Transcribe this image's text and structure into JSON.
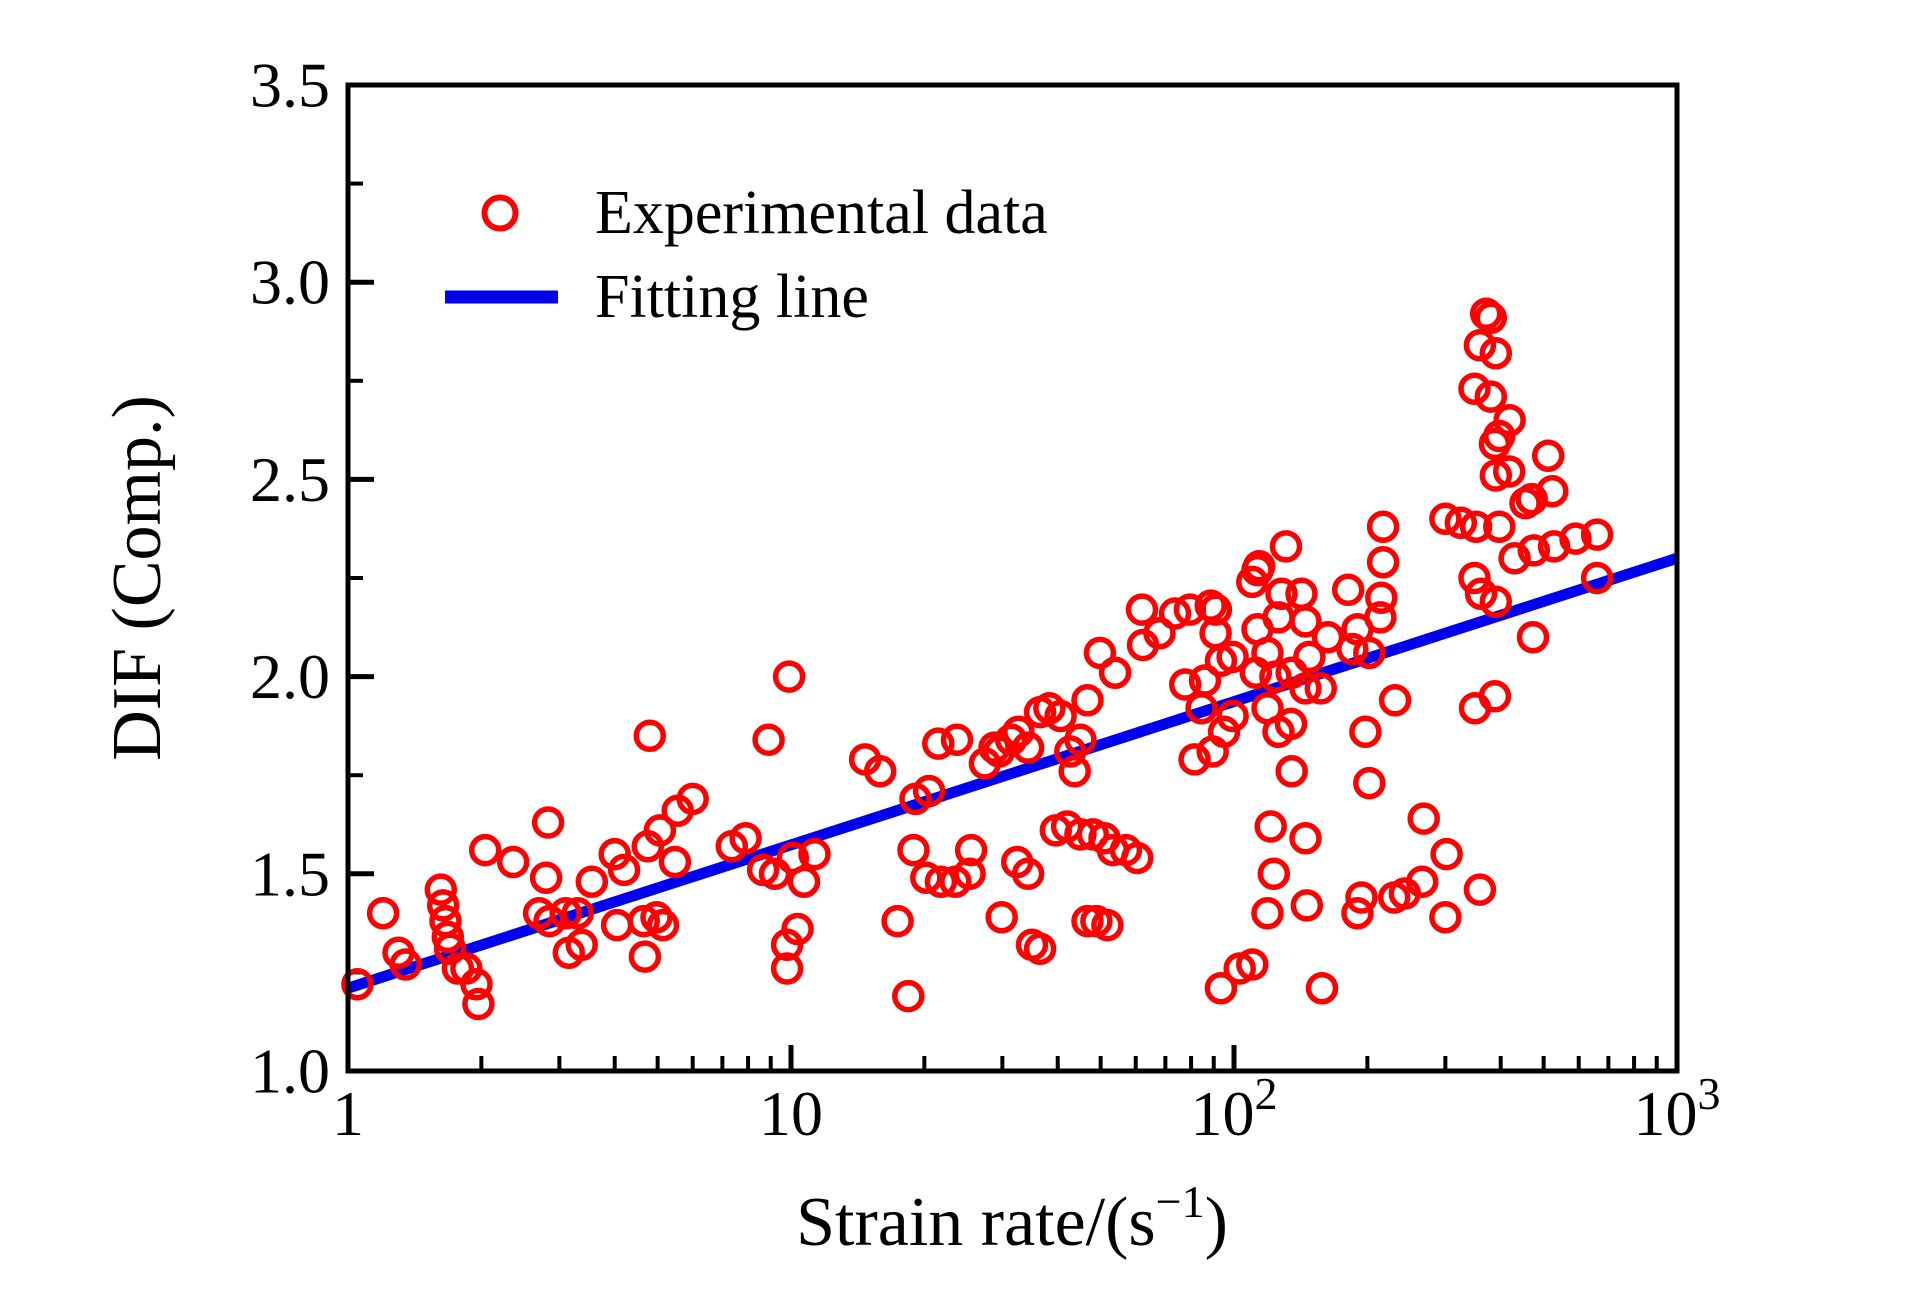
{
  "figure": {
    "background": "#ffffff",
    "frame_color": "#000000"
  },
  "chart_data": {
    "type": "scatter",
    "title": "",
    "xlabel_display": "Strain rate/(s⁻¹)",
    "xlabel_parts": {
      "base": "Strain rate/(s",
      "sup": "−1",
      "end": ")"
    },
    "ylabel": "DIF (Comp.)",
    "x_scale": "log",
    "xlim": [
      1,
      1000
    ],
    "ylim": [
      1.0,
      3.5
    ],
    "grid": false,
    "legend_position": "upper-left-inside",
    "x_major_ticks": [
      {
        "value": 1,
        "base": "1",
        "sup": ""
      },
      {
        "value": 10,
        "base": "10",
        "sup": ""
      },
      {
        "value": 100,
        "base": "10",
        "sup": "2"
      },
      {
        "value": 1000,
        "base": "10",
        "sup": "3"
      }
    ],
    "x_minor_ticks": [
      2,
      3,
      4,
      5,
      6,
      7,
      8,
      9,
      20,
      30,
      40,
      50,
      60,
      70,
      80,
      90,
      200,
      300,
      400,
      500,
      600,
      700,
      800,
      900
    ],
    "y_major_ticks": [
      {
        "value": 1.0,
        "label": "1.0"
      },
      {
        "value": 1.5,
        "label": "1.5"
      },
      {
        "value": 2.0,
        "label": "2.0"
      },
      {
        "value": 2.5,
        "label": "2.5"
      },
      {
        "value": 3.0,
        "label": "3.0"
      },
      {
        "value": 3.5,
        "label": "3.5"
      }
    ],
    "y_minor_ticks": [
      1.25,
      1.75,
      2.25,
      2.75,
      3.25
    ],
    "legend": {
      "items": [
        {
          "label": "Experimental data",
          "marker": "open-circle",
          "color": "#ff0000"
        },
        {
          "label": "Fitting line",
          "marker": "line",
          "color": "#0000ee"
        }
      ]
    },
    "series": [
      {
        "name": "Experimental data",
        "type": "scatter",
        "marker": "open-circle",
        "color": "#ff0000",
        "points": [
          [
            1.05,
            1.22
          ],
          [
            1.2,
            1.4
          ],
          [
            1.3,
            1.3
          ],
          [
            1.35,
            1.27
          ],
          [
            1.62,
            1.46
          ],
          [
            1.64,
            1.42
          ],
          [
            1.66,
            1.38
          ],
          [
            1.68,
            1.34
          ],
          [
            1.7,
            1.31
          ],
          [
            1.77,
            1.26
          ],
          [
            1.85,
            1.26
          ],
          [
            1.95,
            1.22
          ],
          [
            1.97,
            1.17
          ],
          [
            2.04,
            1.56
          ],
          [
            2.36,
            1.53
          ],
          [
            2.7,
            1.4
          ],
          [
            2.8,
            1.49
          ],
          [
            2.83,
            1.63
          ],
          [
            2.85,
            1.38
          ],
          [
            3.1,
            1.4
          ],
          [
            3.15,
            1.3
          ],
          [
            3.3,
            1.4
          ],
          [
            3.37,
            1.32
          ],
          [
            3.55,
            1.48
          ],
          [
            4.0,
            1.55
          ],
          [
            4.05,
            1.37
          ],
          [
            4.2,
            1.51
          ],
          [
            4.65,
            1.38
          ],
          [
            4.68,
            1.29
          ],
          [
            4.75,
            1.57
          ],
          [
            4.8,
            1.85
          ],
          [
            4.97,
            1.39
          ],
          [
            5.06,
            1.61
          ],
          [
            5.14,
            1.37
          ],
          [
            5.47,
            1.53
          ],
          [
            5.55,
            1.66
          ],
          [
            6.0,
            1.69
          ],
          [
            7.35,
            1.57
          ],
          [
            7.9,
            1.59
          ],
          [
            8.65,
            1.51
          ],
          [
            8.9,
            1.84
          ],
          [
            9.2,
            1.5
          ],
          [
            9.8,
            1.32
          ],
          [
            9.8,
            1.26
          ],
          [
            9.9,
            2.0
          ],
          [
            10.1,
            1.54
          ],
          [
            10.35,
            1.36
          ],
          [
            11.3,
            1.55
          ],
          [
            10.7,
            1.48
          ],
          [
            14.7,
            1.79
          ],
          [
            15.9,
            1.76
          ],
          [
            17.4,
            1.38
          ],
          [
            18.4,
            1.19
          ],
          [
            18.9,
            1.56
          ],
          [
            19.1,
            1.69
          ],
          [
            20.5,
            1.71
          ],
          [
            20.2,
            1.49
          ],
          [
            21.8,
            1.48
          ],
          [
            23.5,
            1.48
          ],
          [
            25.3,
            1.5
          ],
          [
            25.5,
            1.56
          ],
          [
            21.5,
            1.83
          ],
          [
            23.7,
            1.84
          ],
          [
            27.4,
            1.78
          ],
          [
            28.8,
            1.82
          ],
          [
            29.5,
            1.81
          ],
          [
            31.4,
            1.84
          ],
          [
            32.6,
            1.86
          ],
          [
            34.3,
            1.82
          ],
          [
            29.9,
            1.39
          ],
          [
            32.4,
            1.53
          ],
          [
            34.3,
            1.5
          ],
          [
            35,
            1.32
          ],
          [
            36.5,
            1.31
          ],
          [
            36.5,
            1.91
          ],
          [
            38.3,
            1.92
          ],
          [
            40.6,
            1.9
          ],
          [
            39.6,
            1.61
          ],
          [
            42,
            1.62
          ],
          [
            45,
            1.6
          ],
          [
            48,
            1.6
          ],
          [
            51,
            1.59
          ],
          [
            53.3,
            1.56
          ],
          [
            57,
            1.56
          ],
          [
            60.5,
            1.54
          ],
          [
            42.7,
            1.81
          ],
          [
            43.7,
            1.76
          ],
          [
            45,
            1.84
          ],
          [
            46.7,
            1.94
          ],
          [
            46.7,
            1.38
          ],
          [
            48.9,
            1.38
          ],
          [
            51.8,
            1.37
          ],
          [
            49.8,
            2.06
          ],
          [
            53.9,
            2.01
          ],
          [
            62,
            2.17
          ],
          [
            62.3,
            2.08
          ],
          [
            67.9,
            2.11
          ],
          [
            73.6,
            2.16
          ],
          [
            77.6,
            1.98
          ],
          [
            79.5,
            2.17
          ],
          [
            81.5,
            1.79
          ],
          [
            84.5,
            1.92
          ],
          [
            86,
            1.99
          ],
          [
            88.6,
            2.18
          ],
          [
            89.5,
            1.81
          ],
          [
            90.9,
            2.11
          ],
          [
            91,
            2.17
          ],
          [
            93.4,
            2.04
          ],
          [
            95,
            1.86
          ],
          [
            99.3,
            2.05
          ],
          [
            99.3,
            1.9
          ],
          [
            93.4,
            1.21
          ],
          [
            103,
            1.26
          ],
          [
            110,
            2.24
          ],
          [
            114,
            2.28
          ],
          [
            113,
            2.12
          ],
          [
            126,
            2.15
          ],
          [
            119,
            2.06
          ],
          [
            112,
            2.01
          ],
          [
            124,
            2.0
          ],
          [
            119,
            1.92
          ],
          [
            126,
            1.86
          ],
          [
            134.5,
            1.88
          ],
          [
            145,
            1.97
          ],
          [
            135,
            2.01
          ],
          [
            145,
            2.14
          ],
          [
            148,
            2.05
          ],
          [
            157,
            1.97
          ],
          [
            163,
            2.1
          ],
          [
            185,
            2.07
          ],
          [
            190,
            2.12
          ],
          [
            202,
            2.06
          ],
          [
            214,
            2.15
          ],
          [
            135,
            1.76
          ],
          [
            121,
            1.62
          ],
          [
            145,
            1.59
          ],
          [
            123,
            1.5
          ],
          [
            119,
            1.4
          ],
          [
            146,
            1.42
          ],
          [
            158,
            1.21
          ],
          [
            110,
            1.27
          ],
          [
            198,
            1.86
          ],
          [
            202,
            1.73
          ],
          [
            231,
            1.94
          ],
          [
            190,
            1.4
          ],
          [
            194,
            1.44
          ],
          [
            230,
            1.44
          ],
          [
            243,
            1.45
          ],
          [
            266,
            1.48
          ],
          [
            268,
            1.64
          ],
          [
            300,
            1.39
          ],
          [
            302,
            1.55
          ],
          [
            350,
            1.92
          ],
          [
            359,
            1.46
          ],
          [
            388,
            1.95
          ],
          [
            473,
            2.1
          ],
          [
            131,
            2.33
          ],
          [
            113,
            2.27
          ],
          [
            128,
            2.21
          ],
          [
            142,
            2.21
          ],
          [
            181,
            2.22
          ],
          [
            217,
            2.38
          ],
          [
            217,
            2.29
          ],
          [
            215,
            2.2
          ],
          [
            300,
            2.4
          ],
          [
            325,
            2.39
          ],
          [
            352,
            2.38
          ],
          [
            397,
            2.38
          ],
          [
            349,
            2.25
          ],
          [
            361,
            2.21
          ],
          [
            390,
            2.19
          ],
          [
            371,
            2.92
          ],
          [
            380,
            2.91
          ],
          [
            359,
            2.84
          ],
          [
            390,
            2.82
          ],
          [
            349,
            2.73
          ],
          [
            380,
            2.71
          ],
          [
            419,
            2.65
          ],
          [
            397,
            2.61
          ],
          [
            388,
            2.59
          ],
          [
            390,
            2.51
          ],
          [
            418,
            2.52
          ],
          [
            512,
            2.56
          ],
          [
            523,
            2.47
          ],
          [
            470,
            2.45
          ],
          [
            455,
            2.44
          ],
          [
            430,
            2.3
          ],
          [
            475,
            2.32
          ],
          [
            528,
            2.33
          ],
          [
            590,
            2.35
          ],
          [
            660,
            2.36
          ],
          [
            660,
            2.25
          ]
        ]
      },
      {
        "name": "Fitting line",
        "type": "line",
        "color": "#0000ee",
        "points": [
          [
            1,
            1.21
          ],
          [
            1000,
            2.3
          ]
        ]
      }
    ]
  }
}
